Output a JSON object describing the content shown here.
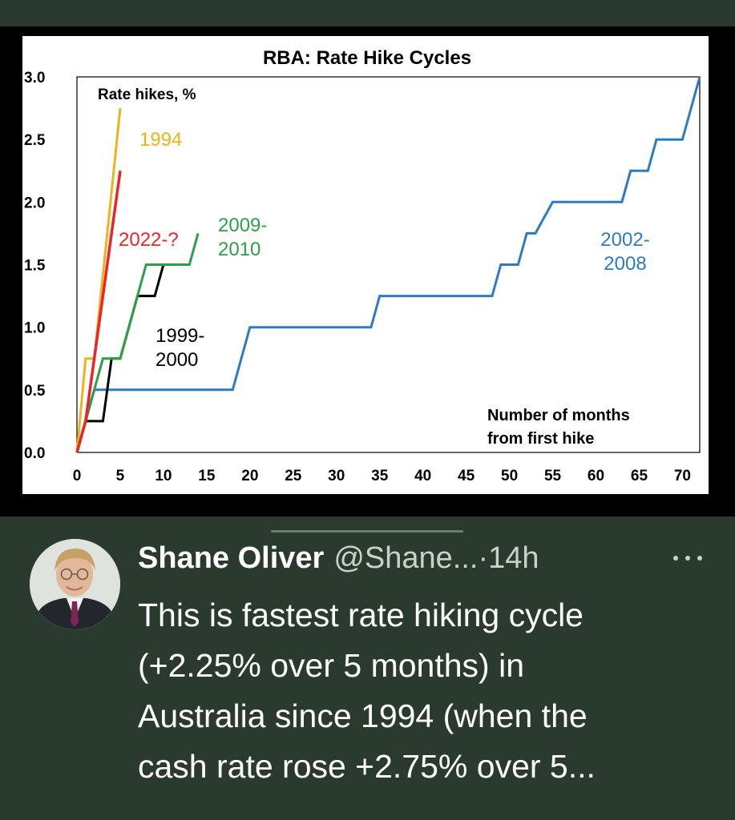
{
  "tweet": {
    "author_name": "Shane Oliver",
    "handle": "@Shane...",
    "time": "·14h",
    "text_lines": [
      "This is fastest rate hiking cycle",
      "(+2.25% over 5 months) in",
      "Australia since 1994 (when the",
      "cash rate rose +2.75% over 5..."
    ]
  },
  "chart_data": {
    "type": "line",
    "title": "RBA: Rate Hike Cycles",
    "ylabel": "Rate hikes, %",
    "xlabel": "Number of months from first hike",
    "xlabel_lines": [
      "Number of months",
      "from first hike"
    ],
    "xlim": [
      0,
      72
    ],
    "ylim": [
      0,
      3.0
    ],
    "xticks": [
      0,
      5,
      10,
      15,
      20,
      25,
      30,
      35,
      40,
      45,
      50,
      55,
      60,
      65,
      70
    ],
    "yticks": [
      "0.0",
      "0.5",
      "1.0",
      "1.5",
      "2.0",
      "2.5",
      "3.0"
    ],
    "series": [
      {
        "name": "1994",
        "label_lines": [
          "1994"
        ],
        "color": "#f0b21a",
        "x": [
          0,
          1,
          2,
          5
        ],
        "y": [
          0,
          0.75,
          0.75,
          2.75
        ]
      },
      {
        "name": "2022-?",
        "label_lines": [
          "2022-?"
        ],
        "color": "#e8262a",
        "x": [
          0,
          1,
          2,
          3,
          4,
          5
        ],
        "y": [
          0,
          0.25,
          0.75,
          1.25,
          1.75,
          2.25
        ]
      },
      {
        "name": "2009-2010",
        "label_lines": [
          "2009-",
          "2010"
        ],
        "color": "#2ea043",
        "x": [
          0,
          2,
          3,
          5,
          6,
          7,
          8,
          11,
          13,
          14
        ],
        "y": [
          0,
          0.5,
          0.75,
          0.75,
          1.0,
          1.25,
          1.5,
          1.5,
          1.5,
          1.75
        ]
      },
      {
        "name": "1999-2000",
        "label_lines": [
          "1999-",
          "2000"
        ],
        "color": "#000000",
        "x": [
          0,
          1,
          3,
          4,
          5,
          7,
          9,
          10
        ],
        "y": [
          0,
          0.25,
          0.25,
          0.75,
          0.75,
          1.25,
          1.25,
          1.5
        ]
      },
      {
        "name": "2002-2008",
        "label_lines": [
          "2002-",
          "2008"
        ],
        "color": "#2f7ac2",
        "x": [
          0,
          2,
          18,
          20,
          34,
          35,
          48,
          49,
          51,
          52,
          53,
          55,
          63,
          64,
          66,
          67,
          70,
          72
        ],
        "y": [
          0,
          0.5,
          0.5,
          1.0,
          1.0,
          1.25,
          1.25,
          1.5,
          1.5,
          1.75,
          1.75,
          2.0,
          2.0,
          2.25,
          2.25,
          2.5,
          2.5,
          3.0
        ]
      }
    ]
  }
}
